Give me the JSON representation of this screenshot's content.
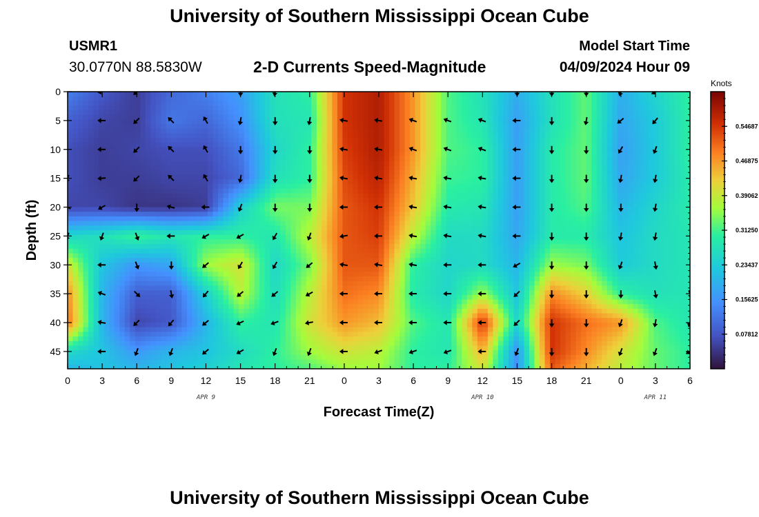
{
  "header": {
    "title": "University of Southern Mississippi Ocean Cube",
    "station": "USMR1",
    "location": "30.0770N  88.5830W",
    "subtitle": "2-D Currents Speed-Magnitude",
    "model_start_label": "Model Start Time",
    "model_start_value": "04/09/2024 Hour 09"
  },
  "footer": {
    "title": "University of Southern Mississippi Ocean Cube"
  },
  "chart_data": {
    "type": "heatmap",
    "title": "2-D Currents Speed-Magnitude",
    "xlabel": "Forecast Time(Z)",
    "ylabel": "Depth (ft)",
    "x_hours_from_0Z_apr9": [
      0,
      3,
      6,
      9,
      12,
      15,
      18,
      21,
      24,
      27,
      30,
      33,
      36,
      39,
      42,
      45,
      48,
      51,
      54
    ],
    "x_tick_labels": [
      "0",
      "3",
      "6",
      "9",
      "12",
      "15",
      "18",
      "21",
      "0",
      "3",
      "6",
      "9",
      "12",
      "15",
      "18",
      "21",
      "0",
      "3",
      "6"
    ],
    "date_labels": [
      {
        "hour": 12,
        "text": "APR 9"
      },
      {
        "hour": 36,
        "text": "APR 10"
      },
      {
        "hour": 51,
        "text": "APR 11"
      }
    ],
    "xlim": [
      0,
      54
    ],
    "y_ticks": [
      0,
      5,
      10,
      15,
      20,
      25,
      30,
      35,
      40,
      45
    ],
    "ylim": [
      0,
      48
    ],
    "colorbar": {
      "units": "Knots",
      "range": [
        0,
        0.625
      ],
      "tick_values": [
        0.078125,
        0.15625,
        0.234375,
        0.3125,
        0.390625,
        0.46875,
        0.546875
      ],
      "tick_labels": [
        "0.07812",
        "0.15625",
        "0.23437",
        "0.31250",
        "0.39062",
        "0.46875",
        "0.54687"
      ]
    },
    "speed_grid": {
      "hours": [
        0,
        3,
        6,
        9,
        12,
        15,
        18,
        21,
        24,
        27,
        30,
        33,
        36,
        39,
        42,
        45,
        48,
        51,
        54
      ],
      "depths": [
        0,
        5,
        10,
        15,
        20,
        25,
        30,
        35,
        40,
        45,
        48
      ],
      "values": [
        [
          0.13,
          0.08,
          0.05,
          0.1,
          0.13,
          0.17,
          0.27,
          0.3,
          0.55,
          0.58,
          0.47,
          0.32,
          0.27,
          0.19,
          0.27,
          0.33,
          0.19,
          0.25,
          0.3
        ],
        [
          0.09,
          0.06,
          0.05,
          0.12,
          0.1,
          0.15,
          0.27,
          0.28,
          0.55,
          0.58,
          0.47,
          0.32,
          0.28,
          0.17,
          0.27,
          0.33,
          0.18,
          0.23,
          0.3
        ],
        [
          0.07,
          0.05,
          0.06,
          0.07,
          0.07,
          0.12,
          0.25,
          0.3,
          0.54,
          0.58,
          0.47,
          0.32,
          0.3,
          0.17,
          0.29,
          0.33,
          0.17,
          0.23,
          0.3
        ],
        [
          0.07,
          0.05,
          0.05,
          0.06,
          0.06,
          0.1,
          0.27,
          0.3,
          0.53,
          0.57,
          0.45,
          0.31,
          0.3,
          0.17,
          0.29,
          0.33,
          0.18,
          0.23,
          0.29
        ],
        [
          0.06,
          0.06,
          0.04,
          0.04,
          0.05,
          0.24,
          0.34,
          0.34,
          0.52,
          0.55,
          0.43,
          0.29,
          0.28,
          0.17,
          0.29,
          0.32,
          0.2,
          0.25,
          0.29
        ],
        [
          0.25,
          0.27,
          0.31,
          0.28,
          0.3,
          0.3,
          0.28,
          0.38,
          0.52,
          0.54,
          0.38,
          0.26,
          0.26,
          0.18,
          0.29,
          0.29,
          0.22,
          0.26,
          0.28
        ],
        [
          0.4,
          0.22,
          0.16,
          0.18,
          0.36,
          0.4,
          0.25,
          0.34,
          0.52,
          0.52,
          0.3,
          0.25,
          0.26,
          0.2,
          0.36,
          0.34,
          0.23,
          0.26,
          0.28
        ],
        [
          0.48,
          0.2,
          0.09,
          0.09,
          0.24,
          0.38,
          0.26,
          0.38,
          0.5,
          0.48,
          0.29,
          0.25,
          0.36,
          0.22,
          0.48,
          0.42,
          0.3,
          0.27,
          0.28
        ],
        [
          0.5,
          0.2,
          0.06,
          0.08,
          0.2,
          0.3,
          0.28,
          0.4,
          0.47,
          0.44,
          0.32,
          0.28,
          0.55,
          0.25,
          0.55,
          0.5,
          0.47,
          0.32,
          0.28
        ],
        [
          0.26,
          0.22,
          0.16,
          0.2,
          0.22,
          0.26,
          0.3,
          0.36,
          0.4,
          0.38,
          0.3,
          0.28,
          0.45,
          0.15,
          0.55,
          0.48,
          0.4,
          0.33,
          0.3
        ],
        [
          0.2,
          0.22,
          0.2,
          0.22,
          0.24,
          0.28,
          0.3,
          0.32,
          0.36,
          0.36,
          0.3,
          0.3,
          0.4,
          0.15,
          0.52,
          0.45,
          0.38,
          0.33,
          0.3
        ]
      ]
    },
    "current_vectors": {
      "hours": [
        0,
        3,
        6,
        9,
        12,
        15,
        18,
        21,
        24,
        27,
        30,
        33,
        36,
        39,
        42,
        45,
        48,
        51,
        54
      ],
      "depths": [
        0,
        5,
        10,
        15,
        20,
        25,
        30,
        35,
        40,
        45
      ],
      "direction_deg_clockwise_from_north": [
        [
          null,
          260,
          225,
          null,
          null,
          180,
          190,
          null,
          null,
          null,
          null,
          null,
          null,
          180,
          180,
          180,
          200,
          240,
          null
        ],
        [
          null,
          270,
          225,
          315,
          330,
          190,
          180,
          190,
          280,
          280,
          290,
          290,
          290,
          270,
          180,
          190,
          230,
          220,
          null
        ],
        [
          null,
          270,
          225,
          315,
          330,
          180,
          180,
          180,
          280,
          280,
          290,
          290,
          290,
          270,
          180,
          180,
          210,
          200,
          null
        ],
        [
          200,
          265,
          225,
          315,
          330,
          190,
          180,
          180,
          280,
          280,
          280,
          280,
          280,
          270,
          180,
          180,
          190,
          190,
          null
        ],
        [
          300,
          240,
          180,
          285,
          270,
          200,
          180,
          180,
          270,
          270,
          280,
          280,
          280,
          270,
          180,
          180,
          180,
          190,
          null
        ],
        [
          200,
          200,
          160,
          270,
          240,
          240,
          210,
          200,
          260,
          270,
          280,
          280,
          280,
          270,
          180,
          180,
          190,
          190,
          null
        ],
        [
          null,
          270,
          160,
          180,
          230,
          210,
          210,
          230,
          280,
          280,
          280,
          270,
          270,
          240,
          180,
          180,
          200,
          170,
          null
        ],
        [
          null,
          290,
          135,
          170,
          220,
          230,
          230,
          240,
          270,
          270,
          270,
          270,
          270,
          225,
          180,
          180,
          180,
          170,
          160
        ],
        [
          null,
          280,
          225,
          220,
          230,
          245,
          250,
          260,
          270,
          270,
          270,
          270,
          270,
          225,
          180,
          180,
          200,
          190,
          200
        ],
        [
          null,
          270,
          200,
          200,
          230,
          240,
          200,
          200,
          270,
          250,
          250,
          250,
          270,
          200,
          180,
          180,
          200,
          200,
          240
        ]
      ]
    },
    "grid": false,
    "legend": "colorbar right"
  }
}
